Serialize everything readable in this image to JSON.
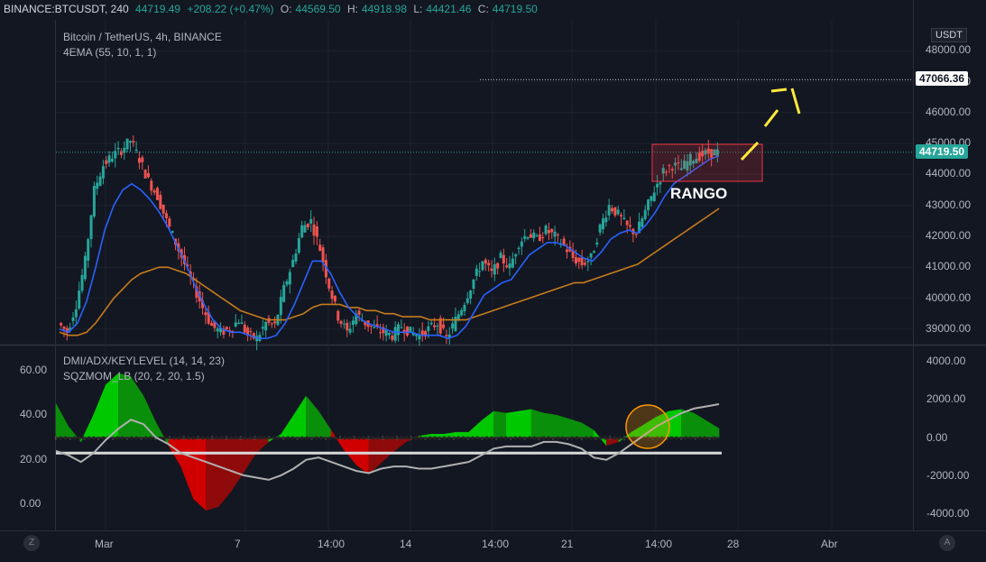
{
  "header": {
    "symbol": "BINANCE:BTCUSDT, 240",
    "last": "44719.49",
    "change": "+208.22 (+0.47%)",
    "o_label": "O:",
    "o_value": "44569.50",
    "h_label": "H:",
    "h_value": "44918.98",
    "l_label": "L:",
    "l_value": "44421.46",
    "c_label": "C:",
    "c_value": "44719.50"
  },
  "main_legend": {
    "title": "Bitcoin / TetherUS, 4h, BINANCE",
    "indicator": "4EMA (55, 10, 1, 1)"
  },
  "sub_legend": {
    "line1": "DMI/ADX/KEYLEVEL (14, 14, 23)",
    "line2": "SQZMOM_LB (20, 2, 20, 1.5)"
  },
  "currency_badge": "USDT",
  "annotation_text": "RANGO",
  "corner_left": "Z",
  "corner_right": "A",
  "colors": {
    "up": "#26a69a",
    "down": "#ef5350",
    "ema_fast": "#2962ff",
    "ema_slow": "#c77c1c",
    "sqz_up": "#00c800",
    "sqz_down": "#c80000",
    "adx": "#b0b0b0",
    "drawing": "#ffeb3b"
  },
  "chart_data": [
    {
      "type": "candlestick",
      "title": "Bitcoin / TetherUS, 4h, BINANCE",
      "x_ticks": [
        "Mar",
        "7",
        "14:00",
        "14",
        "14:00",
        "21",
        "14:00",
        "28",
        "Abr"
      ],
      "y_ticks": [
        "48000.00",
        "47000.00",
        "46000.00",
        "45000.00",
        "44000.00",
        "43000.00",
        "42000.00",
        "41000.00",
        "40000.00",
        "39000.00"
      ],
      "ylim": [
        38500,
        49000
      ],
      "price_tags": {
        "target_line": "47066.36",
        "last_price": "44719.50"
      },
      "close_path": [
        39200,
        38900,
        39800,
        41200,
        43500,
        44300,
        44600,
        44800,
        45100,
        44500,
        43800,
        43300,
        42500,
        41800,
        41100,
        40400,
        39700,
        39100,
        38900,
        39000,
        39300,
        38800,
        38700,
        39200,
        39100,
        40300,
        41200,
        42300,
        42500,
        41600,
        40400,
        39400,
        38900,
        39500,
        39200,
        39000,
        38900,
        38800,
        39100,
        38900,
        38800,
        39000,
        39200,
        38700,
        39300,
        39900,
        40600,
        41200,
        40800,
        41300,
        41000,
        41800,
        42100,
        41900,
        42200,
        42000,
        41700,
        41300,
        41100,
        41300,
        42300,
        43000,
        42700,
        42300,
        42100,
        42800,
        43500,
        44100,
        44300,
        44200,
        44500,
        44600,
        44700,
        44719.5
      ],
      "ema_fast": [
        39000,
        38900,
        39200,
        39900,
        41000,
        42200,
        43000,
        43500,
        43700,
        43500,
        43200,
        42800,
        42300,
        41700,
        41100,
        40400,
        39800,
        39300,
        39000,
        38900,
        38900,
        38800,
        38700,
        38700,
        38800,
        39200,
        39800,
        40500,
        41200,
        41200,
        40800,
        40200,
        39700,
        39400,
        39200,
        39100,
        39000,
        38900,
        38900,
        38900,
        38800,
        38800,
        38800,
        38700,
        38800,
        39100,
        39600,
        40100,
        40300,
        40500,
        40600,
        41000,
        41400,
        41600,
        41800,
        41800,
        41700,
        41500,
        41300,
        41200,
        41500,
        41900,
        42100,
        42200,
        42100,
        42400,
        42800,
        43300,
        43700,
        43900,
        44100,
        44300,
        44500,
        44600
      ],
      "ema_slow": [
        38900,
        38800,
        38800,
        38900,
        39200,
        39600,
        40000,
        40300,
        40600,
        40800,
        40900,
        41000,
        41000,
        40900,
        40800,
        40600,
        40400,
        40200,
        40000,
        39800,
        39600,
        39500,
        39400,
        39300,
        39300,
        39300,
        39400,
        39500,
        39700,
        39800,
        39800,
        39800,
        39700,
        39700,
        39600,
        39600,
        39500,
        39500,
        39400,
        39400,
        39400,
        39300,
        39300,
        39300,
        39300,
        39300,
        39400,
        39500,
        39600,
        39700,
        39800,
        39900,
        40000,
        40100,
        40200,
        40300,
        40400,
        40500,
        40500,
        40600,
        40700,
        40800,
        40900,
        41000,
        41100,
        41300,
        41500,
        41700,
        41900,
        42100,
        42300,
        42500,
        42700,
        42900
      ]
    },
    {
      "type": "area",
      "title": "DMI/ADX/KEYLEVEL (14, 14, 23)",
      "left_ticks": [
        "60.00",
        "40.00",
        "20.00",
        "0.00"
      ],
      "right_ticks": [
        "4000.00",
        "2000.00",
        "0.00",
        "-2000.00",
        "-4000.00"
      ],
      "momentum": [
        1800,
        600,
        -200,
        1200,
        2800,
        3400,
        3200,
        2200,
        800,
        -400,
        -1500,
        -3200,
        -3800,
        -3600,
        -2800,
        -1800,
        -800,
        -200,
        200,
        1200,
        2200,
        1400,
        400,
        -600,
        -1400,
        -1900,
        -1300,
        -700,
        -200,
        100,
        200,
        200,
        300,
        300,
        900,
        1400,
        1300,
        1400,
        1500,
        1300,
        1200,
        1000,
        800,
        400,
        -400,
        -200,
        300,
        700,
        1100,
        1400,
        1500,
        1300,
        900,
        500
      ],
      "adx": [
        24,
        22,
        19,
        23,
        29,
        34,
        38,
        36,
        30,
        27,
        23,
        21,
        19,
        17,
        15,
        13,
        12,
        11,
        13,
        16,
        20,
        21,
        19,
        17,
        15,
        14,
        16,
        17,
        17,
        16,
        16,
        17,
        18,
        19,
        22,
        25,
        26,
        26,
        26,
        28,
        28,
        27,
        25,
        21,
        20,
        23,
        27,
        31,
        35,
        38,
        41,
        43,
        44,
        45
      ]
    }
  ]
}
